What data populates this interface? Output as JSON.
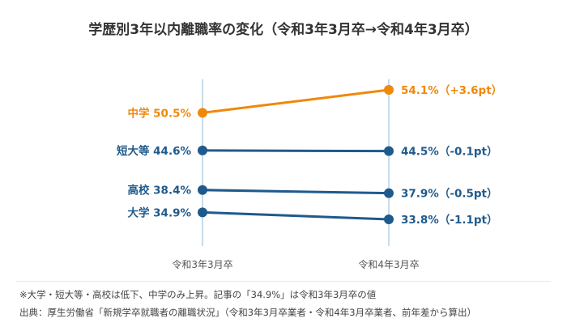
{
  "chart_data": {
    "type": "line",
    "title": "学歴別3年以内離職率の変化（令和3年3月卒→令和4年3月卒）",
    "x": [
      "令和3年3月卒",
      "令和4年3月卒"
    ],
    "ylabel": "",
    "grid": false,
    "series": [
      {
        "name": "中学",
        "values": [
          50.5,
          54.1
        ],
        "start_label": "中学 50.5%",
        "end_label": "54.1%（+3.6pt）",
        "color": "#f0880a"
      },
      {
        "name": "短大等",
        "values": [
          44.6,
          44.5
        ],
        "start_label": "短大等 44.6%",
        "end_label": "44.5%（-0.1pt）",
        "color": "#1f5a8c"
      },
      {
        "name": "高校",
        "values": [
          38.4,
          37.9
        ],
        "start_label": "高校 38.4%",
        "end_label": "37.9%（-0.5pt）",
        "color": "#1f5a8c"
      },
      {
        "name": "大学",
        "values": [
          34.9,
          33.8
        ],
        "start_label": "大学 34.9%",
        "end_label": "33.8%（-1.1pt）",
        "color": "#1f5a8c"
      }
    ]
  },
  "colors": {
    "guide": "#c9dcec",
    "divider": "#e4e8ee",
    "title": "#333333",
    "axis_text": "#555555"
  },
  "notes": {
    "line1": "※大学・短大等・高校は低下、中学のみ上昇。記事の「34.9%」は令和3年3月卒の値",
    "line2": "出典：厚生労働省「新規学卒就職者の離職状況」（令和3年3月卒業者・令和4年3月卒業者、前年差から算出）"
  }
}
